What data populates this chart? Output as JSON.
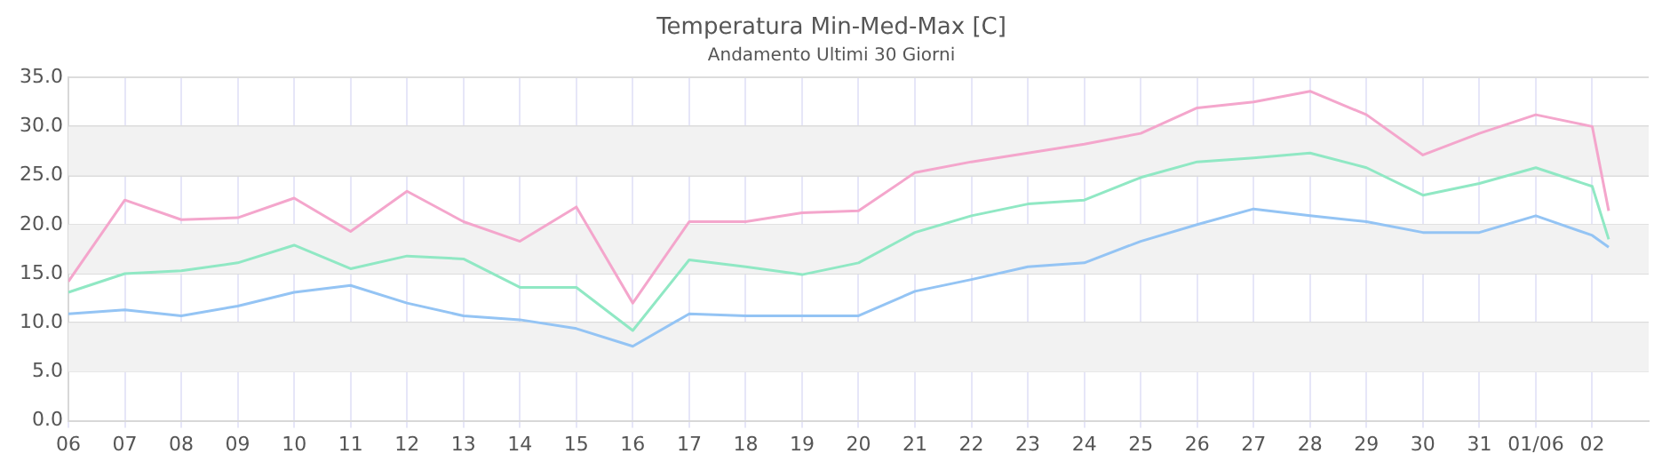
{
  "chart_data": {
    "type": "line",
    "title": "Temperatura Min-Med-Max [C]",
    "subtitle": "Andamento Ultimi 30 Giorni",
    "x": [
      "--05-06",
      "--05-07",
      "--05-08",
      "--05-09",
      "--05-10",
      "--05-11",
      "--05-12",
      "--05-13",
      "--05-14",
      "--05-15",
      "--05-16",
      "--05-17",
      "--05-18",
      "--05-19",
      "--05-20",
      "--05-21",
      "--05-22",
      "--05-23",
      "--05-24",
      "--05-25",
      "--05-26",
      "--05-27",
      "--05-28",
      "--05-29",
      "--05-30",
      "--05-31",
      "--06-01",
      "--06-02",
      "--06-02T07:00"
    ],
    "series": [
      {
        "color": "#f4a6cc",
        "values": [
          14.2,
          22.5,
          20.5,
          20.7,
          22.7,
          19.3,
          23.4,
          20.3,
          18.3,
          21.8,
          12.0,
          20.3,
          20.3,
          21.2,
          21.4,
          25.3,
          26.4,
          27.3,
          28.2,
          29.3,
          31.9,
          32.5,
          33.6,
          31.2,
          27.1,
          29.3,
          31.2,
          30.0,
          21.4
        ]
      },
      {
        "color": "#90e8c4",
        "values": [
          13.1,
          15.0,
          15.3,
          16.1,
          17.9,
          15.5,
          16.8,
          16.5,
          13.6,
          13.6,
          9.2,
          16.4,
          15.7,
          14.9,
          16.1,
          19.2,
          20.9,
          22.1,
          22.5,
          24.8,
          26.4,
          26.8,
          27.3,
          25.8,
          23.0,
          24.2,
          25.8,
          23.9,
          18.5
        ]
      },
      {
        "color": "#94c4f4",
        "values": [
          10.9,
          11.3,
          10.7,
          11.7,
          13.1,
          13.8,
          12.0,
          10.7,
          10.3,
          9.4,
          7.6,
          10.9,
          10.7,
          10.7,
          10.7,
          13.2,
          14.4,
          15.7,
          16.1,
          18.3,
          20.0,
          21.6,
          20.9,
          20.3,
          19.2,
          19.2,
          20.9,
          18.9,
          17.7
        ]
      }
    ],
    "xlim": [
      "--05-06",
      "--06-03"
    ],
    "xticks": [
      {
        "value": "--05-06",
        "label": "06"
      },
      {
        "value": "--05-07",
        "label": "07"
      },
      {
        "value": "--05-08",
        "label": "08"
      },
      {
        "value": "--05-09",
        "label": "09"
      },
      {
        "value": "--05-10",
        "label": "10"
      },
      {
        "value": "--05-11",
        "label": "11"
      },
      {
        "value": "--05-12",
        "label": "12"
      },
      {
        "value": "--05-13",
        "label": "13"
      },
      {
        "value": "--05-14",
        "label": "14"
      },
      {
        "value": "--05-15",
        "label": "15"
      },
      {
        "value": "--05-16",
        "label": "16"
      },
      {
        "value": "--05-17",
        "label": "17"
      },
      {
        "value": "--05-18",
        "label": "18"
      },
      {
        "value": "--05-19",
        "label": "19"
      },
      {
        "value": "--05-20",
        "label": "20"
      },
      {
        "value": "--05-21",
        "label": "21"
      },
      {
        "value": "--05-22",
        "label": "22"
      },
      {
        "value": "--05-23",
        "label": "23"
      },
      {
        "value": "--05-24",
        "label": "24"
      },
      {
        "value": "--05-25",
        "label": "25"
      },
      {
        "value": "--05-26",
        "label": "26"
      },
      {
        "value": "--05-27",
        "label": "27"
      },
      {
        "value": "--05-28",
        "label": "28"
      },
      {
        "value": "--05-29",
        "label": "29"
      },
      {
        "value": "--05-30",
        "label": "30"
      },
      {
        "value": "--05-31",
        "label": "31"
      },
      {
        "value": "--06-01",
        "label": "01/06"
      },
      {
        "value": "--06-02",
        "label": "02"
      }
    ],
    "ylim": [
      0,
      35
    ],
    "yticks": [
      {
        "value": 0,
        "label": "0.0"
      },
      {
        "value": 5,
        "label": "5.0"
      },
      {
        "value": 10,
        "label": "10.0"
      },
      {
        "value": 15,
        "label": "15.0"
      },
      {
        "value": 20,
        "label": "20.0"
      },
      {
        "value": 25,
        "label": "25.0"
      },
      {
        "value": 30,
        "label": "30.0"
      },
      {
        "value": 35,
        "label": "35.0"
      }
    ],
    "bands": [
      {
        "axis": "y",
        "from": 5,
        "to": 10,
        "color": "#f2f2f2"
      },
      {
        "axis": "y",
        "from": 15,
        "to": 20,
        "color": "#f2f2f2"
      },
      {
        "axis": "y",
        "from": 25,
        "to": 30,
        "color": "#f2f2f2"
      }
    ],
    "grid": true,
    "legend": false,
    "marker": "none",
    "line_style": "solid"
  }
}
